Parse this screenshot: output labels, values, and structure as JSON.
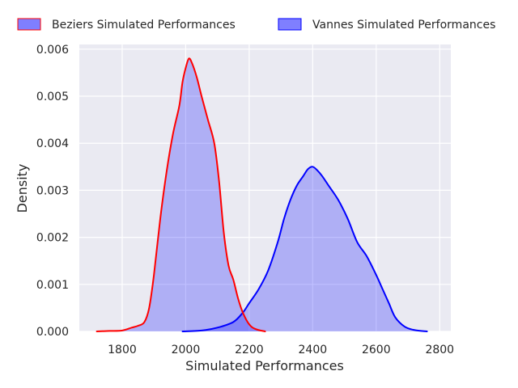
{
  "chart_data": {
    "type": "area",
    "title": "",
    "xlabel": "Simulated Performances",
    "ylabel": "Density",
    "xlim": [
      1665,
      2835
    ],
    "ylim": [
      0,
      0.0061
    ],
    "xticks": [
      1800,
      2000,
      2200,
      2400,
      2600,
      2800
    ],
    "xtick_labels": [
      "1800",
      "2000",
      "2200",
      "2400",
      "2600",
      "2800"
    ],
    "yticks": [
      0,
      0.001,
      0.002,
      0.003,
      0.004,
      0.005,
      0.006
    ],
    "ytick_labels": [
      "0.000",
      "0.001",
      "0.002",
      "0.003",
      "0.004",
      "0.005",
      "0.006"
    ],
    "grid": true,
    "background": "#eaeaf2",
    "legend_position": "top",
    "series": [
      {
        "name": "Beziers Simulated Performances",
        "line_color": "#ff0000",
        "fill_color": "#0000ff",
        "fill_opacity": 0.25,
        "points": [
          [
            1720,
            0.0
          ],
          [
            1760,
            1e-05
          ],
          [
            1800,
            2e-05
          ],
          [
            1830,
            8e-05
          ],
          [
            1850,
            0.00012
          ],
          [
            1870,
            0.0002
          ],
          [
            1885,
            0.0005
          ],
          [
            1900,
            0.0012
          ],
          [
            1920,
            0.0024
          ],
          [
            1940,
            0.0034
          ],
          [
            1960,
            0.0042
          ],
          [
            1980,
            0.0048
          ],
          [
            1990,
            0.0053
          ],
          [
            2000,
            0.0056
          ],
          [
            2010,
            0.0058
          ],
          [
            2020,
            0.0057
          ],
          [
            2035,
            0.0054
          ],
          [
            2050,
            0.005
          ],
          [
            2070,
            0.0045
          ],
          [
            2090,
            0.004
          ],
          [
            2105,
            0.0032
          ],
          [
            2120,
            0.0021
          ],
          [
            2135,
            0.0014
          ],
          [
            2150,
            0.0011
          ],
          [
            2165,
            0.0007
          ],
          [
            2180,
            0.0004
          ],
          [
            2200,
            0.00015
          ],
          [
            2220,
            5e-05
          ],
          [
            2250,
            0.0
          ]
        ]
      },
      {
        "name": "Vannes Simulated Performances",
        "line_color": "#0000ff",
        "fill_color": "#0000ff",
        "fill_opacity": 0.25,
        "points": [
          [
            1990,
            0.0
          ],
          [
            2050,
            2e-05
          ],
          [
            2100,
            8e-05
          ],
          [
            2150,
            0.0002
          ],
          [
            2180,
            0.0004
          ],
          [
            2200,
            0.0006
          ],
          [
            2230,
            0.0009
          ],
          [
            2260,
            0.0013
          ],
          [
            2290,
            0.0019
          ],
          [
            2310,
            0.0024
          ],
          [
            2330,
            0.0028
          ],
          [
            2350,
            0.0031
          ],
          [
            2370,
            0.0033
          ],
          [
            2385,
            0.00345
          ],
          [
            2400,
            0.0035
          ],
          [
            2415,
            0.00342
          ],
          [
            2430,
            0.0033
          ],
          [
            2450,
            0.0031
          ],
          [
            2480,
            0.0028
          ],
          [
            2510,
            0.0024
          ],
          [
            2540,
            0.0019
          ],
          [
            2570,
            0.0016
          ],
          [
            2600,
            0.0012
          ],
          [
            2620,
            0.0009
          ],
          [
            2640,
            0.0006
          ],
          [
            2660,
            0.0003
          ],
          [
            2690,
            0.0001
          ],
          [
            2720,
            3e-05
          ],
          [
            2760,
            0.0
          ]
        ]
      }
    ]
  }
}
